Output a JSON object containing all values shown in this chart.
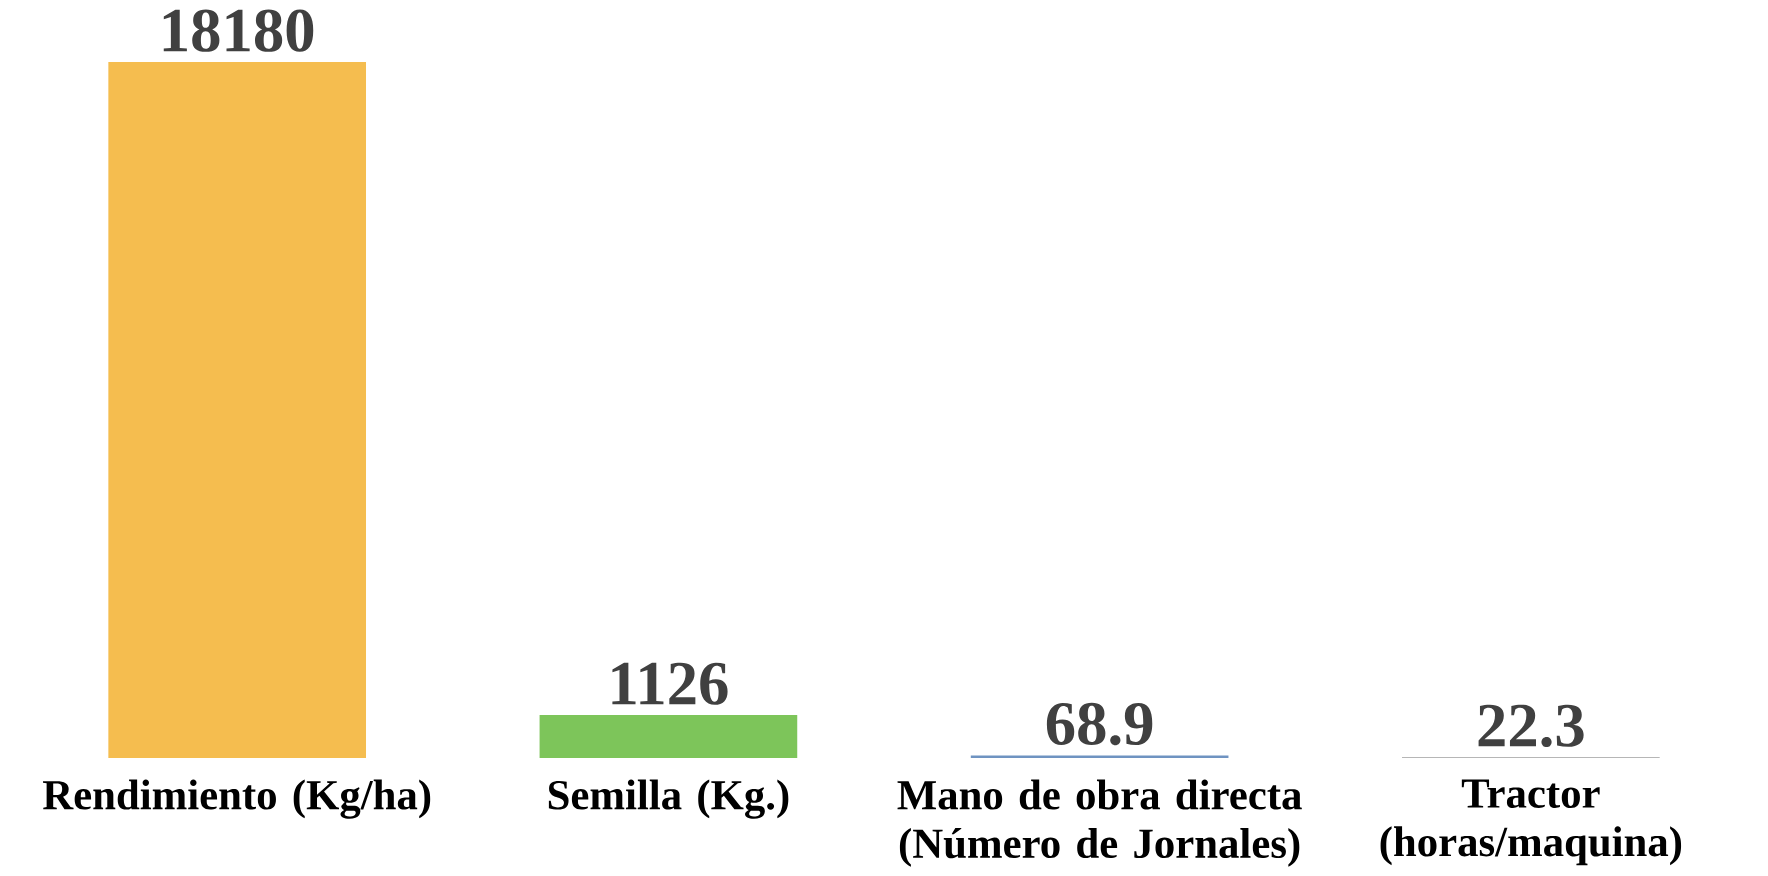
{
  "chart_data": {
    "type": "bar",
    "categories": [
      "Rendimiento (Kg/ha)",
      "Semilla (Kg.)",
      "Mano de obra directa (Número de Jornales)",
      "Tractor (horas/maquina)"
    ],
    "values": [
      18180,
      1126,
      68.9,
      22.3
    ],
    "colors": [
      "#f5bd4f",
      "#7dc55a",
      "#6f93c1",
      "#9e9e9e"
    ],
    "data_labels": true
  }
}
